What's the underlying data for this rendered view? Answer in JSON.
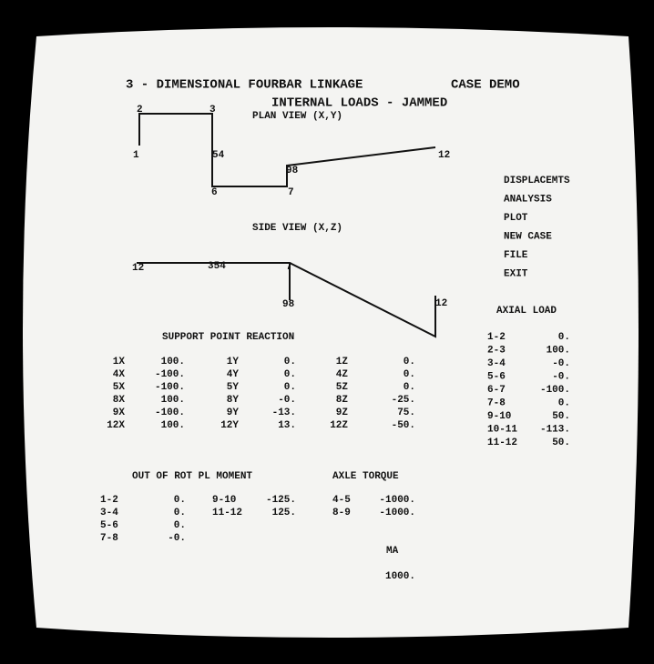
{
  "header": {
    "title": "3 - DIMENSIONAL FOURBAR LINKAGE",
    "case": "CASE  DEMO",
    "subtitle": "INTERNAL LOADS - JAMMED"
  },
  "plan_view": {
    "title": "PLAN VIEW  (X,Y)",
    "node_labels": [
      "2",
      "3",
      "1",
      "54",
      "6",
      "7",
      "98",
      "12"
    ]
  },
  "side_view": {
    "title": "SIDE VIEW  (X,Z)",
    "node_labels": [
      "12",
      "354",
      "7",
      "98",
      "12"
    ]
  },
  "menu": [
    "DISPLACEMTS",
    "ANALYSIS",
    "PLOT",
    "NEW CASE",
    "FILE",
    "EXIT"
  ],
  "axial_load": {
    "title": "AXIAL LOAD",
    "rows": [
      [
        "1-2",
        "0."
      ],
      [
        "2-3",
        "100."
      ],
      [
        "3-4",
        "-0."
      ],
      [
        "5-6",
        "-0."
      ],
      [
        "6-7",
        "-100."
      ],
      [
        "7-8",
        "0."
      ],
      [
        "9-10",
        "50."
      ],
      [
        "10-11",
        "-113."
      ],
      [
        "11-12",
        "50."
      ]
    ]
  },
  "support_point_reaction": {
    "title": "SUPPORT POINT REACTION",
    "rows": [
      [
        "1X",
        "100.",
        "1Y",
        "0.",
        "1Z",
        "0."
      ],
      [
        "4X",
        "-100.",
        "4Y",
        "0.",
        "4Z",
        "0."
      ],
      [
        "5X",
        "-100.",
        "5Y",
        "0.",
        "5Z",
        "0."
      ],
      [
        "8X",
        "100.",
        "8Y",
        "-0.",
        "8Z",
        "-25."
      ],
      [
        "9X",
        "-100.",
        "9Y",
        "-13.",
        "9Z",
        "75."
      ],
      [
        "12X",
        "100.",
        "12Y",
        "13.",
        "12Z",
        "-50."
      ]
    ]
  },
  "moment": {
    "title": "OUT OF ROT PL MOMENT",
    "rows": [
      [
        "1-2",
        "0."
      ],
      [
        "3-4",
        "0."
      ],
      [
        "5-6",
        "0."
      ],
      [
        "7-8",
        "-0."
      ]
    ],
    "rows2": [
      [
        "9-10",
        "-125."
      ],
      [
        "11-12",
        "125."
      ]
    ]
  },
  "axle_torque": {
    "title": "AXLE TORQUE",
    "rows": [
      [
        "4-5",
        "-1000."
      ],
      [
        "8-9",
        "-1000."
      ]
    ]
  },
  "ma": {
    "label": "MA",
    "value": "1000."
  }
}
